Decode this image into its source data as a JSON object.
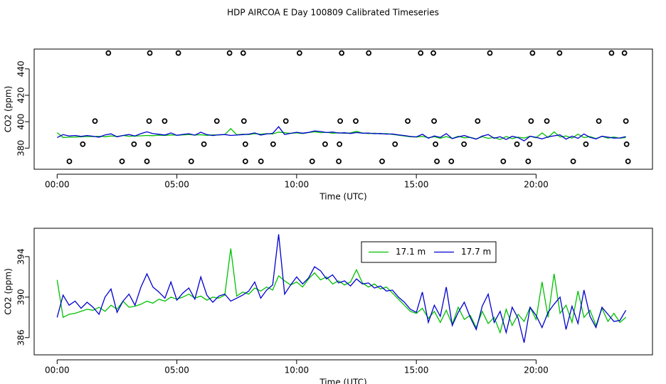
{
  "title": "HDP AIRCOA E  Day 100809  Calibrated Timeseries",
  "chart_data": [
    {
      "type": "scatter",
      "xlabel": "Time (UTC)",
      "ylabel": "CO2 (ppm)",
      "xlim": [
        -0.96,
        24.86
      ],
      "xticks": [
        {
          "value": 0,
          "label": "00:00"
        },
        {
          "value": 5,
          "label": "05:00"
        },
        {
          "value": 10,
          "label": "10:00"
        },
        {
          "value": 15,
          "label": "15:00"
        },
        {
          "value": 20,
          "label": "20:00"
        }
      ],
      "ylim": [
        364,
        455
      ],
      "yticks": [
        380,
        400,
        420,
        440
      ],
      "color": "#000000",
      "x": [
        2.14,
        3.87,
        5.06,
        7.2,
        7.77,
        10.12,
        11.88,
        13.01,
        15.18,
        15.71,
        18.07,
        19.85,
        20.98,
        23.15,
        23.69,
        1.58,
        3.84,
        4.49,
        6.67,
        7.8,
        9.55,
        11.82,
        12.47,
        14.64,
        15.74,
        17.56,
        19.79,
        20.45,
        22.62,
        23.75,
        1.07,
        3.21,
        3.81,
        6.13,
        7.86,
        9.02,
        11.19,
        11.79,
        14.11,
        15.8,
        16.99,
        19.2,
        19.73,
        22.08,
        23.78,
        0.51,
        2.71,
        3.75,
        5.6,
        7.86,
        8.51,
        10.65,
        11.76,
        13.57,
        15.86,
        16.46,
        18.63,
        19.67,
        21.55,
        23.84
      ],
      "y": [
        452,
        452,
        452,
        452,
        452,
        452,
        452,
        452,
        452,
        452,
        452,
        452,
        452,
        452,
        452,
        400.5,
        400.5,
        400.5,
        400.5,
        400.5,
        400.5,
        400.5,
        400.5,
        400.5,
        400.5,
        400.5,
        400.5,
        400.5,
        400.5,
        400.5,
        383,
        383,
        383,
        383,
        383,
        383,
        383,
        383,
        383,
        383,
        383,
        383,
        383,
        383,
        383,
        370,
        370,
        370,
        370,
        370,
        370,
        370,
        370,
        370,
        370,
        370,
        370,
        370,
        370,
        370
      ]
    },
    {
      "type": "line",
      "xlabel": "Time (UTC)",
      "ylabel": "CO2 (ppm)",
      "xlim": [
        -0.96,
        24.86
      ],
      "xticks": [
        {
          "value": 0,
          "label": "00:00"
        },
        {
          "value": 5,
          "label": "05:00"
        },
        {
          "value": 10,
          "label": "10:00"
        },
        {
          "value": 15,
          "label": "15:00"
        },
        {
          "value": 20,
          "label": "20:00"
        }
      ],
      "ylim": [
        384.3,
        396.8
      ],
      "yticks": [
        386,
        390,
        394
      ],
      "legend": "top",
      "x": [
        0,
        0.25,
        0.5,
        0.75,
        1,
        1.25,
        1.5,
        1.75,
        2,
        2.25,
        2.5,
        2.75,
        3,
        3.25,
        3.5,
        3.75,
        4,
        4.25,
        4.5,
        4.75,
        5,
        5.25,
        5.5,
        5.75,
        6,
        6.25,
        6.5,
        6.75,
        7,
        7.25,
        7.5,
        7.75,
        8,
        8.25,
        8.5,
        8.75,
        9,
        9.25,
        9.5,
        9.75,
        10,
        10.25,
        10.5,
        10.75,
        11,
        11.25,
        11.5,
        11.75,
        12,
        12.25,
        12.5,
        12.75,
        13,
        13.25,
        13.5,
        13.75,
        14,
        14.25,
        14.5,
        14.75,
        15,
        15.25,
        15.5,
        15.75,
        16,
        16.25,
        16.5,
        16.75,
        17,
        17.25,
        17.5,
        17.75,
        18,
        18.25,
        18.5,
        18.75,
        19,
        19.25,
        19.5,
        19.75,
        20,
        20.25,
        20.5,
        20.75,
        21,
        21.25,
        21.5,
        21.75,
        22,
        22.25,
        22.5,
        22.75,
        23,
        23.25,
        23.5,
        23.75
      ],
      "series": [
        {
          "name": "17.1 m",
          "color": "#00c000",
          "values": [
            391.7,
            388.0,
            388.3,
            388.4,
            388.6,
            388.8,
            388.7,
            389.0,
            388.6,
            389.2,
            388.8,
            389.6,
            389.0,
            389.1,
            389.3,
            389.6,
            389.4,
            389.8,
            389.6,
            390.0,
            389.8,
            390.0,
            390.3,
            389.9,
            390.1,
            389.7,
            390.0,
            389.9,
            390.2,
            394.8,
            390.1,
            390.5,
            390.3,
            390.9,
            390.6,
            391.0,
            390.7,
            392.1,
            391.6,
            391.2,
            391.5,
            391.0,
            391.8,
            392.4,
            391.7,
            392.0,
            391.3,
            391.6,
            391.2,
            391.5,
            392.7,
            391.4,
            391.0,
            391.3,
            390.8,
            391.0,
            390.4,
            389.8,
            389.2,
            388.6,
            388.4,
            388.9,
            387.9,
            388.6,
            387.5,
            388.7,
            387.3,
            389.0,
            387.8,
            388.2,
            387.0,
            388.6,
            387.4,
            388.0,
            386.5,
            388.8,
            387.2,
            388.3,
            387.6,
            389.0,
            387.8,
            391.5,
            388.0,
            392.3,
            388.4,
            389.2,
            387.5,
            390.6,
            388.0,
            388.7,
            387.2,
            388.9,
            387.6,
            388.4,
            387.5,
            388.0
          ]
        },
        {
          "name": "17.7 m",
          "color": "#0000d0",
          "values": [
            388.0,
            390.2,
            389.2,
            389.6,
            388.9,
            389.5,
            389.0,
            388.3,
            390.0,
            390.8,
            388.5,
            389.6,
            390.3,
            389.2,
            391.0,
            392.3,
            391.0,
            390.5,
            389.9,
            391.5,
            389.7,
            390.4,
            390.9,
            389.8,
            392.0,
            390.2,
            389.5,
            390.1,
            390.3,
            389.6,
            389.9,
            390.2,
            390.6,
            391.5,
            389.9,
            390.7,
            391.2,
            396.2,
            390.3,
            391.2,
            392.0,
            391.3,
            391.9,
            393.0,
            392.6,
            391.8,
            392.2,
            391.4,
            391.6,
            391.1,
            391.8,
            391.3,
            391.4,
            390.9,
            391.1,
            390.6,
            390.7,
            390.0,
            389.5,
            388.8,
            388.5,
            390.5,
            387.5,
            389.2,
            388.1,
            391.0,
            387.2,
            388.5,
            389.5,
            388.0,
            386.8,
            389.1,
            390.3,
            387.5,
            388.6,
            386.5,
            389.0,
            387.9,
            385.5,
            389.0,
            388.2,
            387.0,
            388.5,
            389.3,
            390.0,
            386.8,
            389.1,
            387.4,
            390.7,
            388.1,
            387.0,
            389.0,
            388.3,
            387.6,
            387.7,
            388.7
          ]
        }
      ]
    }
  ]
}
